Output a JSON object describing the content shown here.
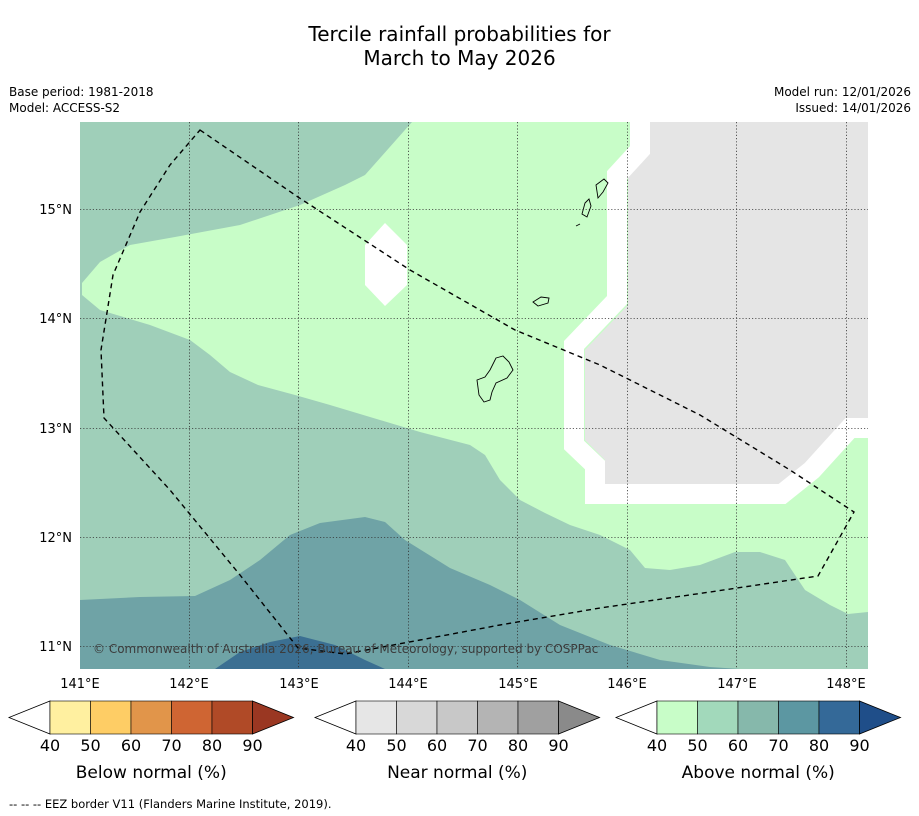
{
  "title_line1": "Tercile rainfall probabilities for",
  "title_line2": "March to May 2026",
  "base_period": "Base period: 1981-2018",
  "model": "Model: ACCESS-S2",
  "model_run": "Model run: 12/01/2026",
  "issued": "Issued: 14/01/2026",
  "copyright": "© Commonwealth of Australia 2026, Bureau of Meteorology, supported by COSPPac",
  "lon_labels": [
    "141°E",
    "142°E",
    "143°E",
    "144°E",
    "145°E",
    "146°E",
    "147°E",
    "148°E"
  ],
  "lat_labels": [
    "15°N",
    "14°N",
    "13°N",
    "12°N",
    "11°N"
  ],
  "colorbars": [
    {
      "label": "Below normal (%)",
      "ticks": [
        "40",
        "50",
        "60",
        "70",
        "80",
        "90"
      ],
      "colors": [
        "#fff0a0",
        "#fecd65",
        "#e1954a",
        "#cf6533",
        "#b04a27",
        "#9a3722"
      ]
    },
    {
      "label": "Near normal (%)",
      "ticks": [
        "40",
        "50",
        "60",
        "70",
        "80",
        "90"
      ],
      "colors": [
        "#e6e6e6",
        "#d8d8d8",
        "#c8c8c8",
        "#b4b4b4",
        "#a0a0a0",
        "#8a8a8a"
      ]
    },
    {
      "label": "Above normal (%)",
      "ticks": [
        "40",
        "50",
        "60",
        "70",
        "80",
        "90"
      ],
      "colors": [
        "#c8fdc8",
        "#a2d9bb",
        "#86b8ab",
        "#5c97a2",
        "#346998",
        "#1f4e89"
      ]
    }
  ],
  "footnote": "--  --  -- EEZ border V11 (Flanders Marine Institute, 2019).",
  "colors": {
    "above_40": "#c8fdc8",
    "above_50": "#9fcfb9",
    "above_60": "#6fa3a6",
    "above_70": "#3b6f92",
    "near_40": "#e5e5e5",
    "white": "#ffffff"
  }
}
